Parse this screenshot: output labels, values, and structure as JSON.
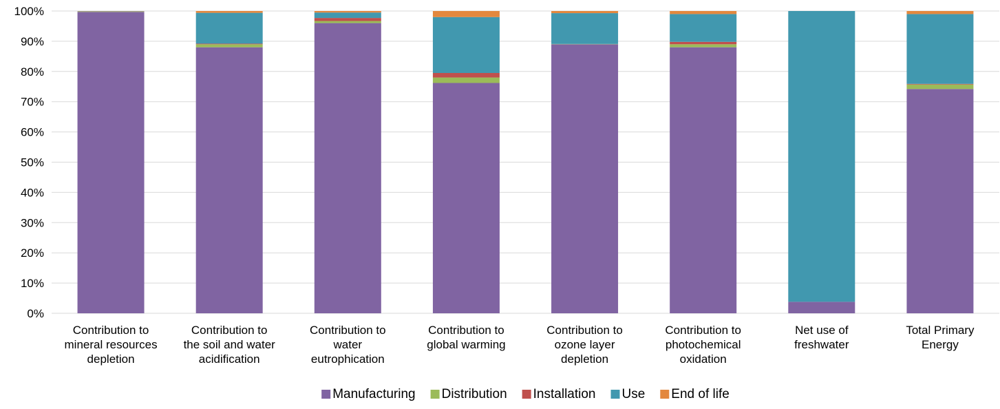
{
  "chart_data": {
    "type": "bar",
    "stacked": true,
    "title": "",
    "xlabel": "",
    "ylabel": "",
    "ylim": [
      0,
      100
    ],
    "y_tick_step": 10,
    "y_tick_suffix": "%",
    "grid": true,
    "legend_position": "bottom",
    "categories": [
      [
        "Contribution to",
        "mineral resources",
        "depletion"
      ],
      [
        "Contribution to",
        "the soil and water",
        "acidification"
      ],
      [
        "Contribution to",
        "water",
        "eutrophication"
      ],
      [
        "Contribution to",
        "global warming"
      ],
      [
        "Contribution to",
        "ozone layer",
        "depletion"
      ],
      [
        "Contribution to",
        "photochemical",
        "oxidation"
      ],
      [
        "Net use of",
        "freshwater"
      ],
      [
        "Total Primary",
        "Energy"
      ]
    ],
    "series": [
      {
        "name": "Manufacturing",
        "color": "#8064a2",
        "values": [
          99.7,
          88.0,
          96.0,
          76.2,
          89.0,
          88.0,
          3.8,
          74.2
        ]
      },
      {
        "name": "Distribution",
        "color": "#9bbb59",
        "values": [
          0.1,
          1.0,
          0.7,
          1.8,
          0.1,
          1.0,
          0.0,
          1.5
        ]
      },
      {
        "name": "Installation",
        "color": "#c0504d",
        "values": [
          0.0,
          0.2,
          1.0,
          1.5,
          0.0,
          0.8,
          0.0,
          0.2
        ]
      },
      {
        "name": "Use",
        "color": "#4198af",
        "values": [
          0.1,
          10.2,
          1.8,
          18.5,
          10.2,
          9.2,
          96.2,
          23.1
        ]
      },
      {
        "name": "End of life",
        "color": "#e3883e",
        "values": [
          0.1,
          0.6,
          0.5,
          2.0,
          0.7,
          1.0,
          0.0,
          1.0
        ]
      }
    ]
  }
}
